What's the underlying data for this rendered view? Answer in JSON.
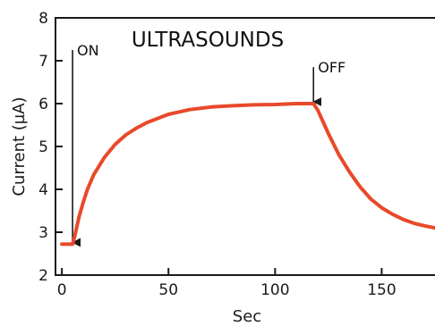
{
  "chart_data": {
    "type": "line",
    "title": "ULTRASOUNDS",
    "xlabel": "Sec",
    "ylabel": "Current (µA)",
    "xlim": [
      -3,
      175
    ],
    "ylim": [
      2,
      8
    ],
    "xticks": [
      0,
      50,
      100,
      150
    ],
    "yticks": [
      2,
      3,
      4,
      5,
      6,
      7,
      8
    ],
    "grid": false,
    "legend": "none",
    "series": [
      {
        "color": "#e8492a",
        "x": [
          0,
          5,
          6,
          8,
          10,
          12,
          15,
          20,
          25,
          30,
          35,
          40,
          50,
          60,
          70,
          80,
          90,
          100,
          110,
          118,
          120,
          125,
          130,
          135,
          140,
          145,
          150,
          155,
          160,
          165,
          170,
          175
        ],
        "y": [
          2.72,
          2.72,
          2.9,
          3.35,
          3.7,
          4.0,
          4.35,
          4.75,
          5.05,
          5.27,
          5.43,
          5.56,
          5.75,
          5.86,
          5.92,
          5.95,
          5.97,
          5.98,
          6.0,
          6.0,
          5.85,
          5.3,
          4.8,
          4.4,
          4.05,
          3.77,
          3.57,
          3.42,
          3.3,
          3.21,
          3.15,
          3.1
        ]
      }
    ],
    "annotations": [
      {
        "label": "ON",
        "x": 5,
        "y_from": 7.25,
        "y_to": 2.72
      },
      {
        "label": "OFF",
        "x": 118,
        "y_from": 6.85,
        "y_to": 6.0
      }
    ]
  }
}
